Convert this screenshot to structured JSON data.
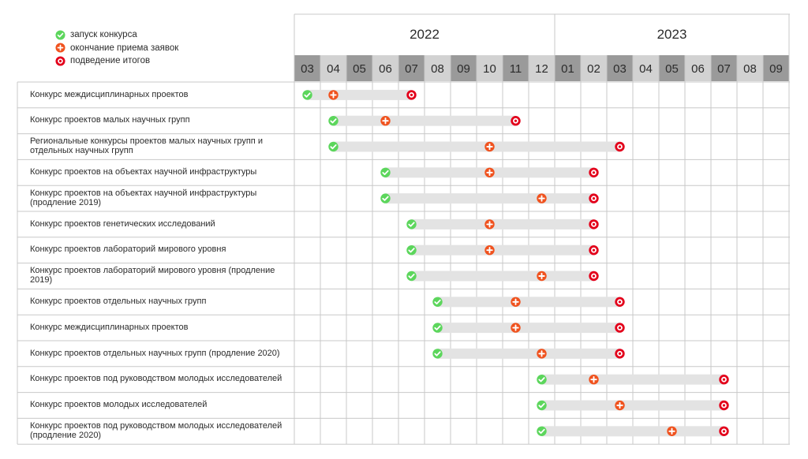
{
  "legend": {
    "start": {
      "label": "запуск конкурса",
      "color": "#5cd65c"
    },
    "deadline": {
      "label": "окончание приема заявок",
      "color": "#f0521e"
    },
    "results": {
      "label": "подведение итогов",
      "color": "#e3001b"
    }
  },
  "chart_data": {
    "type": "gantt",
    "years": [
      {
        "label": "2022",
        "months": [
          "03",
          "04",
          "05",
          "06",
          "07",
          "08",
          "09",
          "10",
          "11",
          "12"
        ]
      },
      {
        "label": "2023",
        "months": [
          "01",
          "02",
          "03",
          "04",
          "05",
          "06",
          "07",
          "08",
          "09"
        ]
      }
    ],
    "timeline": [
      "2022-03",
      "2022-04",
      "2022-05",
      "2022-06",
      "2022-07",
      "2022-08",
      "2022-09",
      "2022-10",
      "2022-11",
      "2022-12",
      "2023-01",
      "2023-02",
      "2023-03",
      "2023-04",
      "2023-05",
      "2023-06",
      "2023-07",
      "2023-08",
      "2023-09"
    ],
    "tasks": [
      {
        "name": "Конкурс междисциплинарных проектов",
        "start": "2022-03",
        "deadline": "2022-04",
        "results": "2022-07"
      },
      {
        "name": "Конкурс проектов малых научных групп",
        "start": "2022-04",
        "deadline": "2022-06",
        "results": "2022-11"
      },
      {
        "name": "Региональные конкурсы проектов малых научных групп и отдельных научных групп",
        "start": "2022-04",
        "deadline": "2022-10",
        "results": "2023-03"
      },
      {
        "name": "Конкурс проектов на объектах научной инфраструктуры",
        "start": "2022-06",
        "deadline": "2022-10",
        "results": "2023-02"
      },
      {
        "name": "Конкурс проектов на объектах научной инфраструктуры (продление 2019)",
        "start": "2022-06",
        "deadline": "2022-12",
        "results": "2023-02"
      },
      {
        "name": "Конкурс проектов генетических исследований",
        "start": "2022-07",
        "deadline": "2022-10",
        "results": "2023-02"
      },
      {
        "name": "Конкурс проектов лабораторий мирового уровня",
        "start": "2022-07",
        "deadline": "2022-10",
        "results": "2023-02"
      },
      {
        "name": "Конкурс проектов лабораторий мирового уровня (продление 2019)",
        "start": "2022-07",
        "deadline": "2022-12",
        "results": "2023-02"
      },
      {
        "name": "Конкурс проектов отдельных научных групп",
        "start": "2022-08",
        "deadline": "2022-11",
        "results": "2023-03"
      },
      {
        "name": "Конкурс междисциплинарных проектов",
        "start": "2022-08",
        "deadline": "2022-11",
        "results": "2023-03"
      },
      {
        "name": "Конкурс проектов отдельных научных групп (продление 2020)",
        "start": "2022-08",
        "deadline": "2022-12",
        "results": "2023-03"
      },
      {
        "name": "Конкурс проектов под руководством молодых исследователей",
        "start": "2022-12",
        "deadline": "2023-02",
        "results": "2023-07"
      },
      {
        "name": "Конкурс проектов молодых исследователей",
        "start": "2022-12",
        "deadline": "2023-03",
        "results": "2023-07"
      },
      {
        "name": "Конкурс проектов под руководством молодых исследователей (продление 2020)",
        "start": "2022-12",
        "deadline": "2023-05",
        "results": "2023-07"
      }
    ],
    "colors": {
      "month_header_dark": "#9a9a9a",
      "month_header_light": "#d2d2d2",
      "bar": "#e3e3e3",
      "grid": "#c8c8c8"
    }
  }
}
